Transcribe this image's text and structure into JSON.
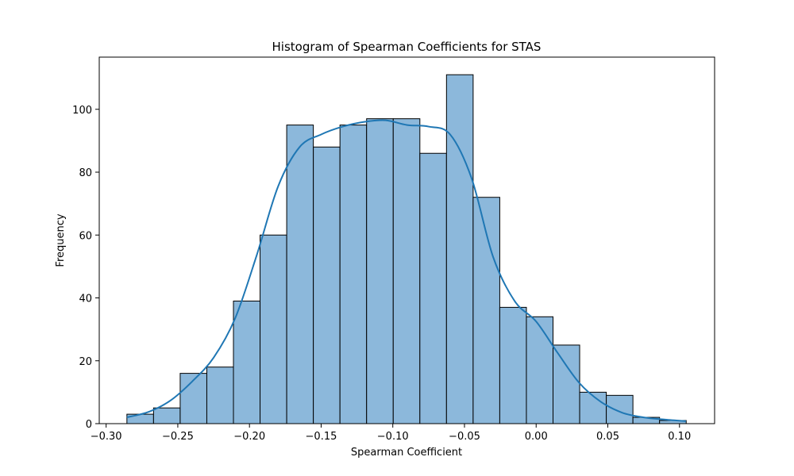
{
  "chart_data": {
    "type": "bar",
    "title": "Histogram of Spearman Coefficients for STAS",
    "xlabel": "Spearman Coefficient",
    "ylabel": "Frequency",
    "xlim": [
      -0.3048,
      0.1245
    ],
    "ylim": [
      0,
      116.6
    ],
    "grid": false,
    "legend": "none",
    "x_ticks": [
      -0.3,
      -0.25,
      -0.2,
      -0.15,
      -0.1,
      -0.05,
      0.0,
      0.05,
      0.1
    ],
    "x_tick_labels": [
      "−0.30",
      "−0.25",
      "−0.20",
      "−0.15",
      "−0.10",
      "−0.05",
      "0.00",
      "0.05",
      "0.10"
    ],
    "y_ticks": [
      0,
      20,
      40,
      60,
      80,
      100
    ],
    "y_tick_labels": [
      "0",
      "20",
      "40",
      "60",
      "80",
      "100"
    ],
    "bin_start": -0.2855,
    "bin_width": 0.01858,
    "values": [
      3,
      5,
      16,
      18,
      39,
      60,
      95,
      88,
      95,
      97,
      97,
      86,
      111,
      72,
      37,
      34,
      25,
      10,
      9,
      2,
      1
    ],
    "kde": {
      "x": [
        -0.2855,
        -0.27,
        -0.255,
        -0.24,
        -0.225,
        -0.21,
        -0.195,
        -0.18,
        -0.165,
        -0.15,
        -0.135,
        -0.12,
        -0.105,
        -0.09,
        -0.075,
        -0.06,
        -0.045,
        -0.03,
        -0.015,
        0.0,
        0.015,
        0.03,
        0.045,
        0.06,
        0.075,
        0.09,
        0.1045
      ],
      "y": [
        2.0,
        3.8,
        7.4,
        13.4,
        21.0,
        33.5,
        53.5,
        75.5,
        88.0,
        92.0,
        94.5,
        96.0,
        96.5,
        95.0,
        94.5,
        92.0,
        78.0,
        53.0,
        39.0,
        32.5,
        22.5,
        13.0,
        7.0,
        3.5,
        2.0,
        1.3,
        0.8
      ]
    },
    "colors": {
      "bar_fill": "#8cb8db",
      "bar_edge": "#000000",
      "kde_line": "#1f77b4"
    }
  }
}
